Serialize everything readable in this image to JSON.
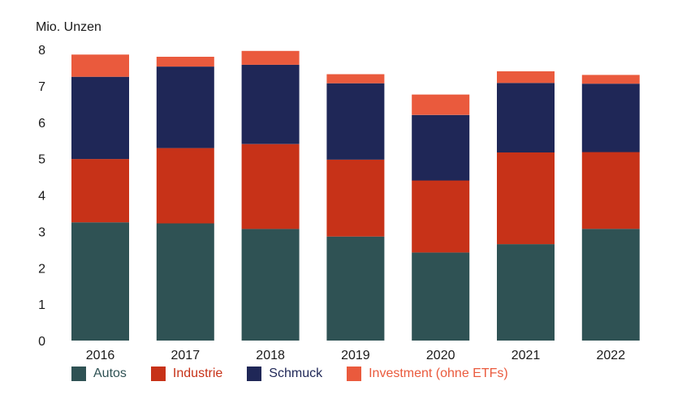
{
  "chart_data": {
    "type": "bar",
    "stacked": true,
    "unit_label": "Mio. Unzen",
    "categories": [
      "2016",
      "2017",
      "2018",
      "2019",
      "2020",
      "2021",
      "2022"
    ],
    "y_ticks": [
      "0",
      "1",
      "2",
      "3",
      "4",
      "5",
      "6",
      "7",
      "8"
    ],
    "ylim": [
      0,
      8
    ],
    "grid": false,
    "legend_position": "bottom",
    "series": [
      {
        "name": "Autos",
        "color": "#2f5254",
        "values": [
          3.25,
          3.22,
          3.07,
          2.86,
          2.42,
          2.65,
          3.07
        ]
      },
      {
        "name": "Industrie",
        "color": "#c73218",
        "values": [
          1.74,
          2.07,
          2.33,
          2.11,
          1.98,
          2.52,
          2.11
        ]
      },
      {
        "name": "Schmuck",
        "color": "#1f2757",
        "values": [
          2.26,
          2.24,
          2.18,
          2.1,
          1.8,
          1.91,
          1.88
        ]
      },
      {
        "name": "Investment (ohne ETFs)",
        "color": "#ea5a3d",
        "values": [
          0.61,
          0.27,
          0.38,
          0.25,
          0.56,
          0.32,
          0.24
        ]
      }
    ]
  }
}
